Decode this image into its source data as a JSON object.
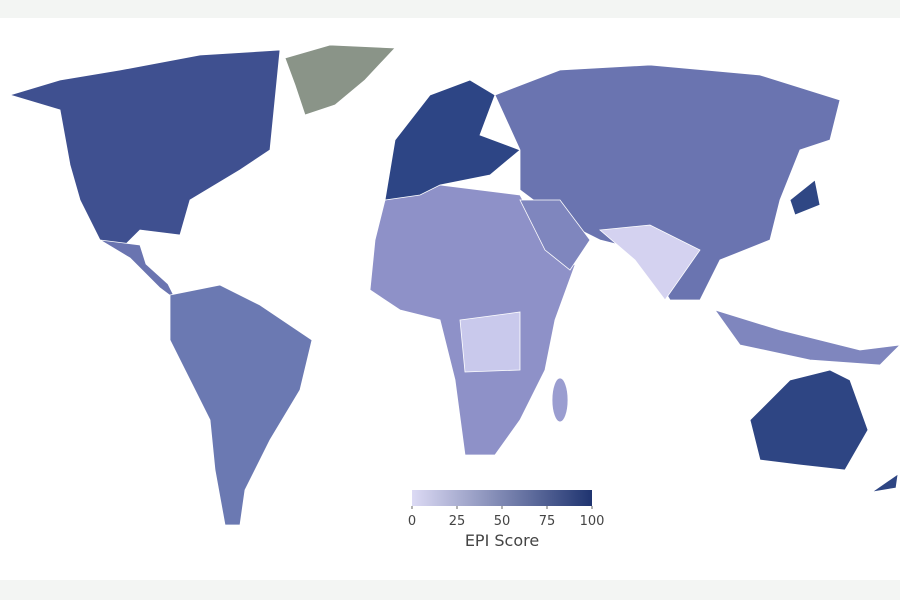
{
  "legend": {
    "title": "EPI Score",
    "range": [
      0,
      100
    ],
    "ticks": [
      0,
      25,
      50,
      75,
      100
    ],
    "colors": [
      "#dcdaf4",
      "#1f3470"
    ]
  }
}
